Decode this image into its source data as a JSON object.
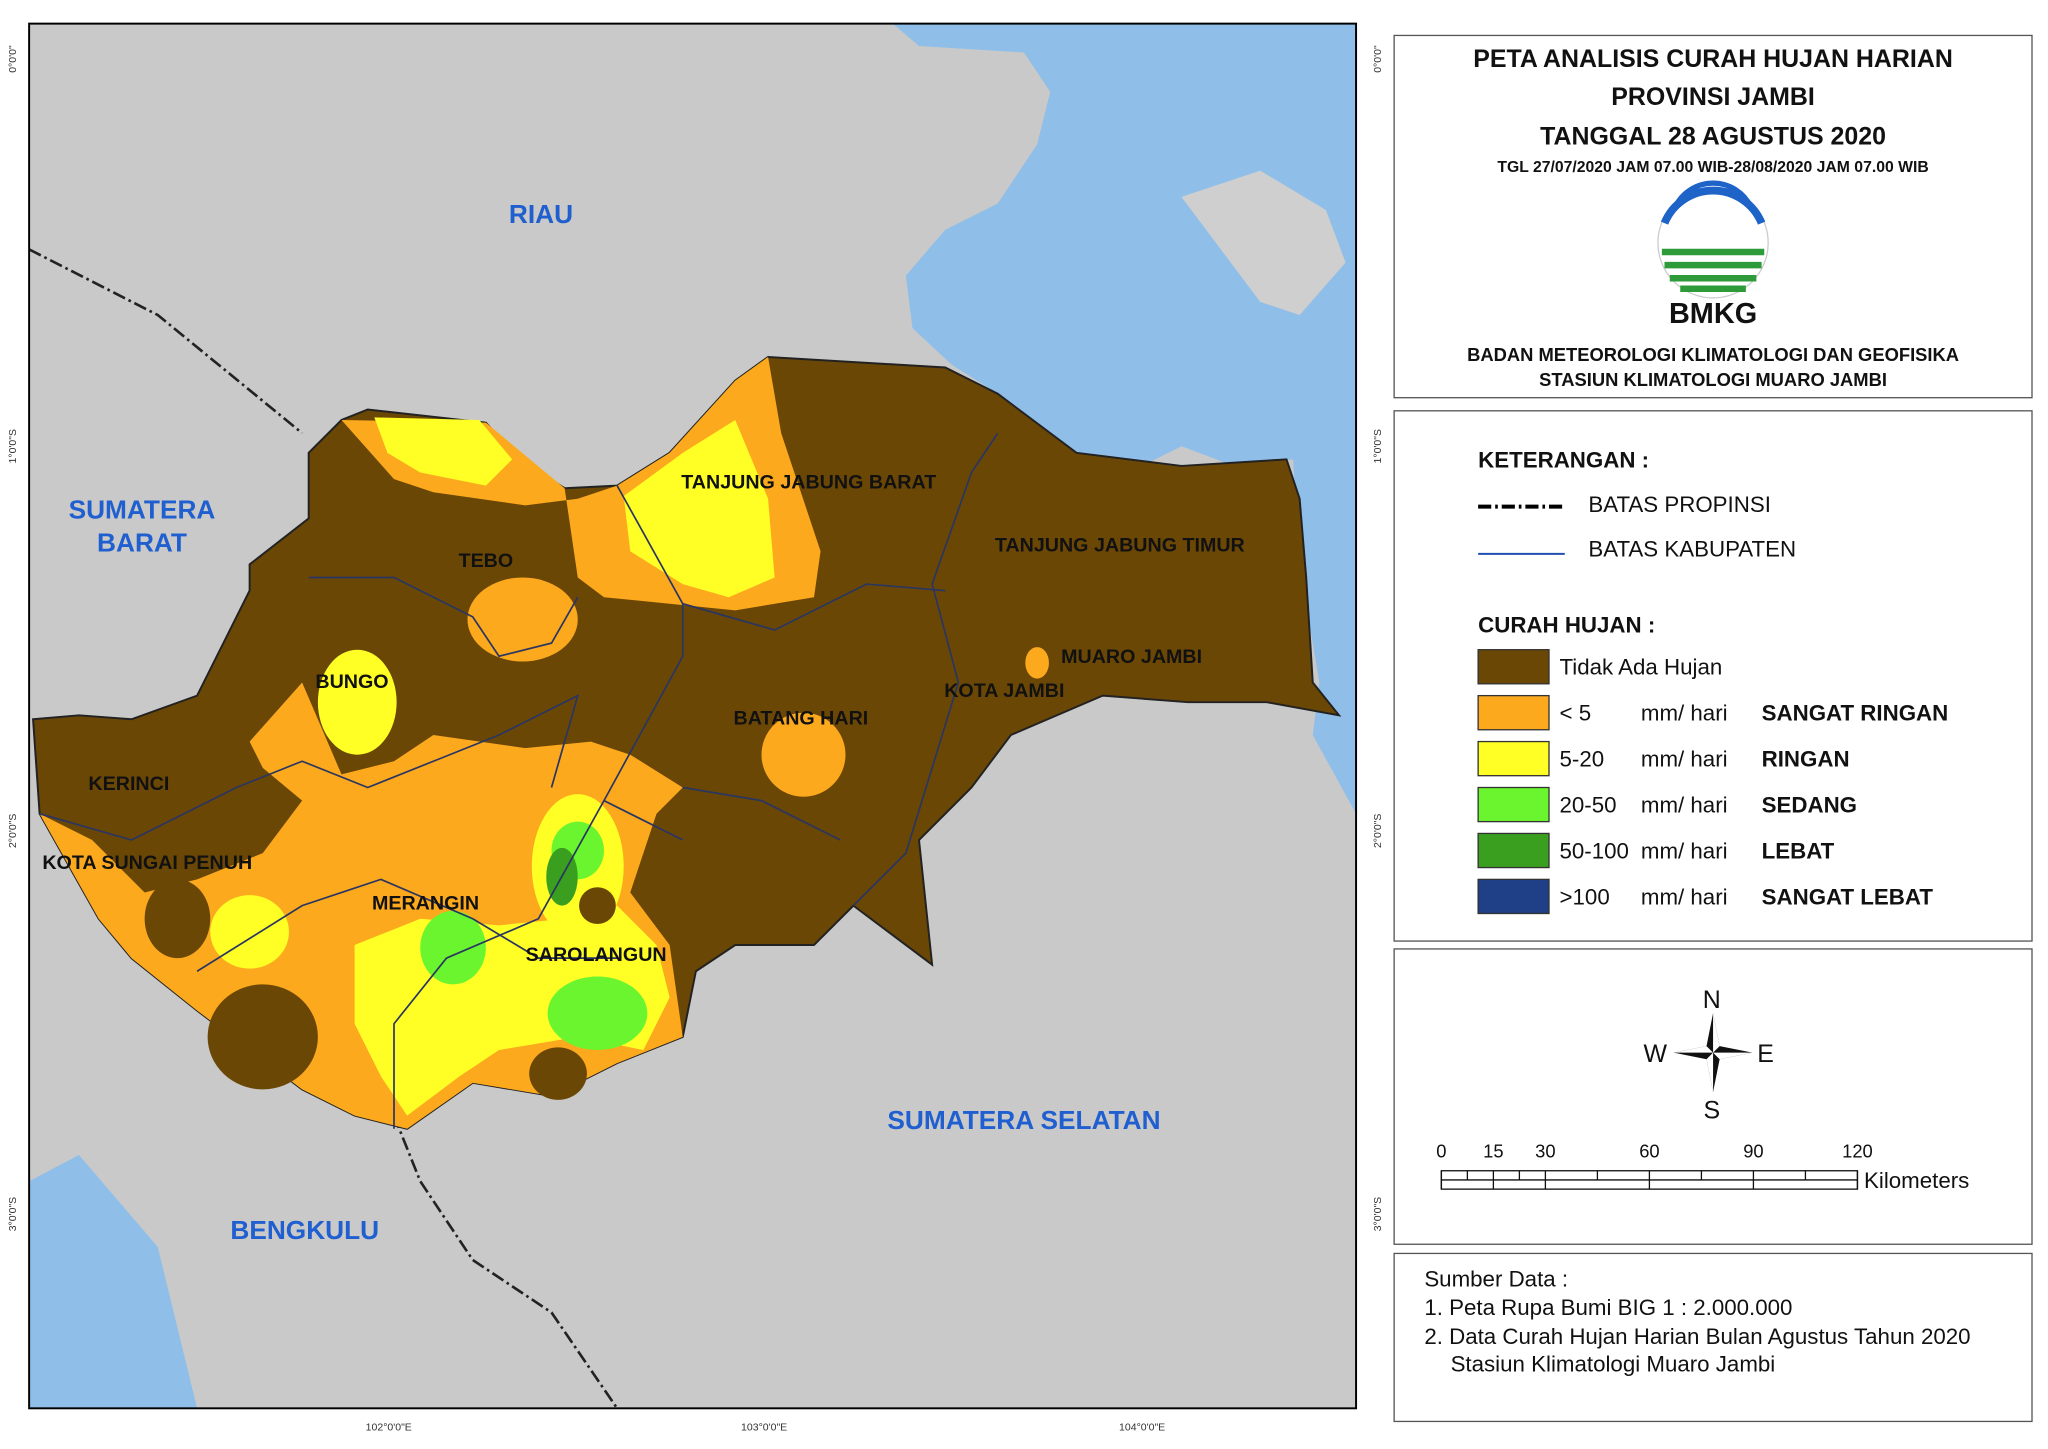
{
  "header": {
    "title_lines": [
      "PETA ANALISIS CURAH HUJAN HARIAN",
      "PROVINSI JAMBI",
      "TANGGAL 28 AGUSTUS 2020"
    ],
    "date_range": "TGL 27/07/2020 JAM 07.00 WIB-28/08/2020 JAM 07.00 WIB",
    "logo_text": "BMKG",
    "agency": [
      "BADAN METEOROLOGI KLIMATOLOGI DAN GEOFISIKA",
      "STASIUN KLIMATOLOGI MUARO JAMBI"
    ]
  },
  "legend": {
    "heading": "KETERANGAN :",
    "boundaries": [
      "BATAS PROPINSI",
      "BATAS KABUPATEN"
    ],
    "rainfall_heading": "CURAH HUJAN :",
    "classes": [
      {
        "label": "Tidak Ada Hujan",
        "color": "#6b4706"
      },
      {
        "range": "< 5",
        "unit": "mm/ hari",
        "label": "SANGAT RINGAN",
        "color": "#fca91e"
      },
      {
        "range": "5-20",
        "unit": "mm/ hari",
        "label": "RINGAN",
        "color": "#ffff26"
      },
      {
        "range": "20-50",
        "unit": "mm/ hari",
        "label": "SEDANG",
        "color": "#6bf52e"
      },
      {
        "range": "50-100",
        "unit": "mm/ hari",
        "label": "LEBAT",
        "color": "#3a9e1f"
      },
      {
        "range": ">100",
        "unit": "mm/ hari",
        "label": "SANGAT LEBAT",
        "color": "#1f3f86"
      }
    ]
  },
  "compass": {
    "n": "N",
    "e": "E",
    "s": "S",
    "w": "W"
  },
  "scale": {
    "ticks": [
      0,
      15,
      30,
      60,
      90,
      120
    ],
    "unit": "Kilometers"
  },
  "source": {
    "heading": "Sumber Data :",
    "lines": [
      "1. Peta Rupa Bumi BIG 1 : 2.000.000",
      "2. Data Curah Hujan Harian  Bulan Agustus Tahun 2020",
      "Stasiun Klimatologi Muaro Jambi"
    ]
  },
  "map": {
    "provinces": [
      "RIAU",
      "SUMATERA",
      "BARAT",
      "SUMATERA SELATAN",
      "BENGKULU"
    ],
    "districts": [
      "TANJUNG JABUNG BARAT",
      "TANJUNG JABUNG TIMUR",
      "TEBO",
      "BUNGO",
      "MUARO JAMBI",
      "KOTA JAMBI",
      "BATANG HARI",
      "KERINCI",
      "KOTA SUNGAI PENUH",
      "MERANGIN",
      "SAROLANGUN"
    ],
    "longitudes": [
      "102°0'0\"E",
      "103°0'0\"E",
      "104°0'0\"E"
    ],
    "latitudes": [
      "0°0'0\"",
      "1°0'0\"S",
      "2°0'0\"S",
      "3°0'0\"S"
    ]
  }
}
